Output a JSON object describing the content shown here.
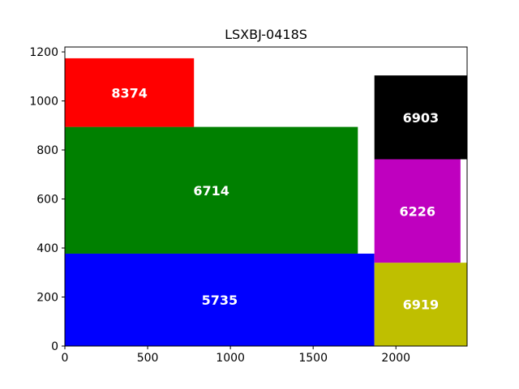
{
  "chart_data": {
    "type": "treemap",
    "title": "LSXBJ-0418S",
    "xlim": [
      0,
      2430
    ],
    "ylim": [
      0,
      1220
    ],
    "x_ticks": [
      0,
      500,
      1000,
      1500,
      2000
    ],
    "y_ticks": [
      0,
      200,
      400,
      600,
      800,
      1000,
      1200
    ],
    "grid": false,
    "rects": [
      {
        "label": "5735",
        "x": 0,
        "y": 0,
        "width": 1870,
        "height": 377,
        "color": "#0000ff"
      },
      {
        "label": "6714",
        "x": 0,
        "y": 377,
        "width": 1770,
        "height": 517,
        "color": "#008000"
      },
      {
        "label": "8374",
        "x": 0,
        "y": 894,
        "width": 780,
        "height": 280,
        "color": "#ff0000"
      },
      {
        "label": "6919",
        "x": 1870,
        "y": 0,
        "width": 560,
        "height": 340,
        "color": "#bfbf00"
      },
      {
        "label": "6226",
        "x": 1870,
        "y": 340,
        "width": 520,
        "height": 422,
        "color": "#bf00bf"
      },
      {
        "label": "6903",
        "x": 1870,
        "y": 762,
        "width": 560,
        "height": 342,
        "color": "#000000"
      }
    ]
  }
}
